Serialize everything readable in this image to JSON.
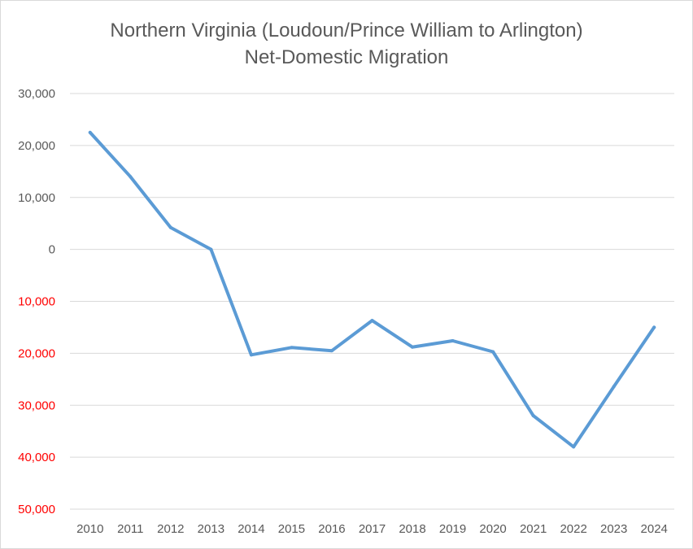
{
  "chart_data": {
    "type": "line",
    "title_line1": "Northern Virginia (Loudoun/Prince  William to Arlington)",
    "title_line2": "Net-Domestic Migration",
    "xlabel": "",
    "ylabel": "",
    "categories": [
      "2010",
      "2011",
      "2012",
      "2013",
      "2014",
      "2015",
      "2016",
      "2017",
      "2018",
      "2019",
      "2020",
      "2021",
      "2022",
      "2023",
      "2024"
    ],
    "series": [
      {
        "name": "Net-Domestic Migration",
        "color": "#5b9bd5",
        "values": [
          22500,
          14000,
          4200,
          0,
          -20300,
          -18900,
          -19500,
          -13700,
          -18800,
          -17600,
          -19700,
          -32000,
          -38000,
          -26400,
          -15000
        ]
      }
    ],
    "ylim": [
      -50000,
      30000
    ],
    "y_ticks": [
      {
        "value": 30000,
        "label": "30,000",
        "color": "#595959"
      },
      {
        "value": 20000,
        "label": "20,000",
        "color": "#595959"
      },
      {
        "value": 10000,
        "label": "10,000",
        "color": "#595959"
      },
      {
        "value": 0,
        "label": "0",
        "color": "#595959"
      },
      {
        "value": -10000,
        "label": "10,000",
        "color": "#ff0000"
      },
      {
        "value": -20000,
        "label": "20,000",
        "color": "#ff0000"
      },
      {
        "value": -30000,
        "label": "30,000",
        "color": "#ff0000"
      },
      {
        "value": -40000,
        "label": "40,000",
        "color": "#ff0000"
      },
      {
        "value": -50000,
        "label": "50,000",
        "color": "#ff0000"
      }
    ],
    "grid": true,
    "gridline_color": "#d9d9d9",
    "legend": "none"
  }
}
